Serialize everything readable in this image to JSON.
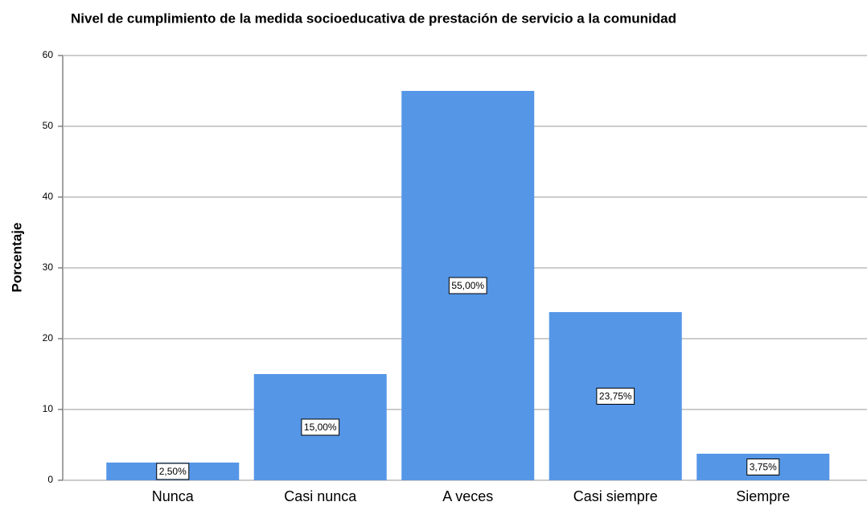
{
  "chart_data": {
    "type": "bar",
    "title": "Nivel de cumplimiento de la medida socioeducativa de prestación de servicio a la comunidad",
    "ylabel": "Porcentaje",
    "categories": [
      "Nunca",
      "Casi nunca",
      "A veces",
      "Casi siempre",
      "Siempre"
    ],
    "values": [
      2.5,
      15,
      55,
      23.75,
      3.75
    ],
    "value_labels": [
      "2,50%",
      "15,00%",
      "55,00%",
      "23,75%",
      "3,75%"
    ],
    "color": "#5596e6",
    "ylim": [
      0,
      60
    ],
    "yticks": [
      0,
      10,
      20,
      30,
      40,
      50,
      60
    ],
    "grid": true
  }
}
